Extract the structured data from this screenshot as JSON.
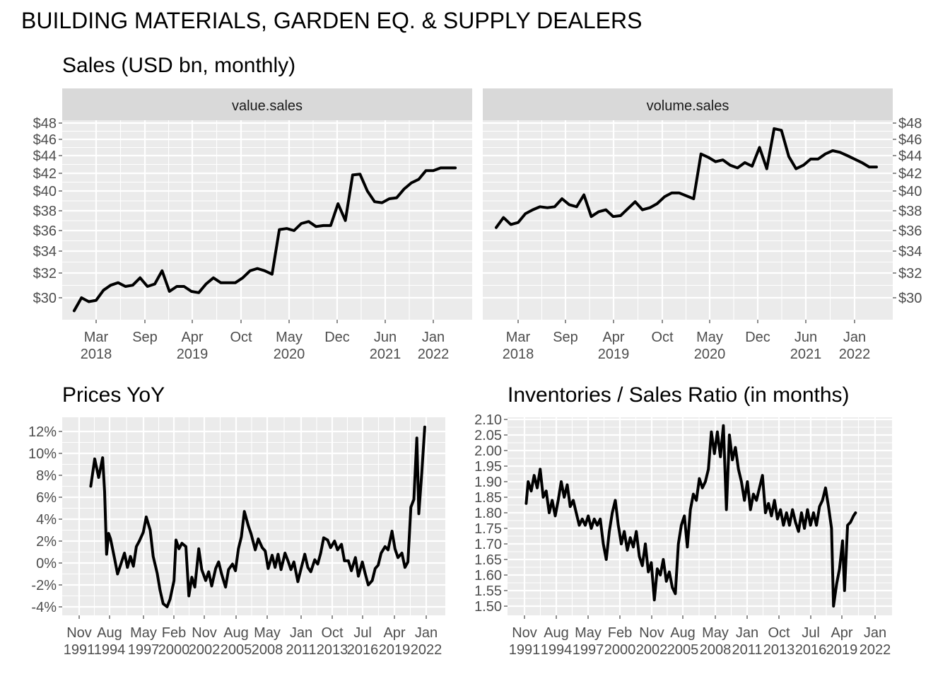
{
  "title": "BUILDING MATERIALS, GARDEN EQ. & SUPPLY DEALERS",
  "chart_data": [
    {
      "type": "line",
      "title": "Sales (USD bn, monthly)",
      "facet": "value.sales",
      "x_ticks": [
        [
          "Mar",
          "2018"
        ],
        [
          "Sep",
          ""
        ],
        [
          "Apr",
          "2019"
        ],
        [
          "Oct",
          ""
        ],
        [
          "May",
          "2020"
        ],
        [
          "Dec",
          ""
        ],
        [
          "Jun",
          "2021"
        ],
        [
          "Jan",
          "2022"
        ]
      ],
      "y_ticks": [
        "$30",
        "$32",
        "$34",
        "$36",
        "$38",
        "$40",
        "$42",
        "$44",
        "$46",
        "$48"
      ],
      "scale": "log",
      "ylim": [
        28.9,
        48
      ],
      "xlim": [
        "2017-11",
        "2022-06"
      ],
      "grid": true,
      "x": [
        "2017-12",
        "2018-01",
        "2018-02",
        "2018-03",
        "2018-04",
        "2018-05",
        "2018-06",
        "2018-07",
        "2018-08",
        "2018-09",
        "2018-10",
        "2018-11",
        "2018-12",
        "2019-01",
        "2019-02",
        "2019-03",
        "2019-04",
        "2019-05",
        "2019-06",
        "2019-07",
        "2019-08",
        "2019-09",
        "2019-10",
        "2019-11",
        "2019-12",
        "2020-01",
        "2020-02",
        "2020-03",
        "2020-04",
        "2020-05",
        "2020-06",
        "2020-07",
        "2020-08",
        "2020-09",
        "2020-10",
        "2020-11",
        "2020-12",
        "2021-01",
        "2021-02",
        "2021-03",
        "2021-04",
        "2021-05",
        "2021-06",
        "2021-07",
        "2021-08",
        "2021-09",
        "2021-10",
        "2021-11",
        "2021-12",
        "2022-01",
        "2022-02",
        "2022-03",
        "2022-04"
      ],
      "values": [
        29.0,
        30.0,
        29.7,
        29.8,
        30.6,
        31.0,
        31.2,
        30.9,
        31.0,
        31.6,
        30.9,
        31.1,
        32.2,
        30.5,
        30.9,
        30.9,
        30.5,
        30.4,
        31.1,
        31.6,
        31.2,
        31.2,
        31.2,
        31.6,
        32.2,
        32.4,
        32.2,
        31.9,
        36.1,
        36.2,
        36.0,
        36.7,
        36.9,
        36.4,
        36.5,
        36.5,
        38.7,
        37.0,
        41.8,
        41.9,
        40.0,
        38.9,
        38.8,
        39.2,
        39.3,
        40.2,
        40.9,
        41.3,
        42.3,
        42.3,
        42.6,
        42.6,
        42.6
      ]
    },
    {
      "type": "line",
      "title": "",
      "facet": "volume.sales",
      "x_ticks": [
        [
          "Mar",
          "2018"
        ],
        [
          "Sep",
          ""
        ],
        [
          "Apr",
          "2019"
        ],
        [
          "Oct",
          ""
        ],
        [
          "May",
          "2020"
        ],
        [
          "Dec",
          ""
        ],
        [
          "Jun",
          "2021"
        ],
        [
          "Jan",
          "2022"
        ]
      ],
      "y_ticks": [
        "$30",
        "$32",
        "$34",
        "$36",
        "$38",
        "$40",
        "$42",
        "$44",
        "$46",
        "$48"
      ],
      "scale": "log",
      "ylim": [
        28.9,
        48
      ],
      "xlim": [
        "2017-11",
        "2022-06"
      ],
      "grid": true,
      "x": [
        "2017-12",
        "2018-01",
        "2018-02",
        "2018-03",
        "2018-04",
        "2018-05",
        "2018-06",
        "2018-07",
        "2018-08",
        "2018-09",
        "2018-10",
        "2018-11",
        "2018-12",
        "2019-01",
        "2019-02",
        "2019-03",
        "2019-04",
        "2019-05",
        "2019-06",
        "2019-07",
        "2019-08",
        "2019-09",
        "2019-10",
        "2019-11",
        "2019-12",
        "2020-01",
        "2020-02",
        "2020-03",
        "2020-04",
        "2020-05",
        "2020-06",
        "2020-07",
        "2020-08",
        "2020-09",
        "2020-10",
        "2020-11",
        "2020-12",
        "2021-01",
        "2021-02",
        "2021-03",
        "2021-04",
        "2021-05",
        "2021-06",
        "2021-07",
        "2021-08",
        "2021-09",
        "2021-10",
        "2021-11",
        "2021-12",
        "2022-01",
        "2022-02",
        "2022-03",
        "2022-04"
      ],
      "values": [
        36.3,
        37.3,
        36.6,
        36.8,
        37.7,
        38.1,
        38.4,
        38.3,
        38.4,
        39.2,
        38.6,
        38.4,
        39.6,
        37.4,
        37.9,
        38.1,
        37.4,
        37.5,
        38.2,
        38.9,
        38.1,
        38.3,
        38.7,
        39.4,
        39.8,
        39.8,
        39.5,
        39.2,
        44.2,
        43.8,
        43.3,
        43.5,
        42.9,
        42.6,
        43.2,
        42.8,
        45.0,
        42.5,
        47.3,
        47.1,
        43.9,
        42.5,
        42.9,
        43.6,
        43.6,
        44.2,
        44.6,
        44.4,
        44.0,
        43.6,
        43.2,
        42.7,
        42.7
      ]
    },
    {
      "type": "line",
      "title": "Prices YoY",
      "x_ticks": [
        [
          "Nov",
          "1991"
        ],
        [
          "Aug",
          "1994"
        ],
        [
          "May",
          "1997"
        ],
        [
          "Feb",
          "2000"
        ],
        [
          "Nov",
          "2002"
        ],
        [
          "Aug",
          "2005"
        ],
        [
          "May",
          "2008"
        ],
        [
          "Jan",
          "2011"
        ],
        [
          "Oct",
          "2013"
        ],
        [
          "Jul",
          "2016"
        ],
        [
          "Apr",
          "2019"
        ],
        [
          "Jan",
          "2022"
        ]
      ],
      "y_ticks": [
        "-4%",
        "-2%",
        "0%",
        "2%",
        "4%",
        "6%",
        "8%",
        "10%",
        "12%"
      ],
      "ylim": [
        -4.6,
        13
      ],
      "xlim": [
        "1990-11",
        "2022-12"
      ],
      "grid": true,
      "x_start": "1992-12",
      "x_end": "2022-04",
      "values_by_time": [
        [
          1993.0,
          7.0
        ],
        [
          1993.4,
          9.5
        ],
        [
          1993.8,
          7.8
        ],
        [
          1994.2,
          9.6
        ],
        [
          1994.4,
          6.5
        ],
        [
          1994.6,
          0.8
        ],
        [
          1994.8,
          2.7
        ],
        [
          1995.0,
          2.2
        ],
        [
          1995.4,
          0.4
        ],
        [
          1995.7,
          -1.0
        ],
        [
          1996.0,
          -0.2
        ],
        [
          1996.4,
          0.9
        ],
        [
          1996.7,
          -0.4
        ],
        [
          1997.0,
          0.6
        ],
        [
          1997.3,
          -0.3
        ],
        [
          1997.6,
          1.5
        ],
        [
          1997.9,
          2.0
        ],
        [
          1998.3,
          2.8
        ],
        [
          1998.6,
          4.2
        ],
        [
          1999.0,
          3.0
        ],
        [
          1999.3,
          0.6
        ],
        [
          1999.7,
          -0.9
        ],
        [
          2000.0,
          -2.5
        ],
        [
          2000.3,
          -3.7
        ],
        [
          2000.7,
          -4.0
        ],
        [
          2001.0,
          -3.3
        ],
        [
          2001.4,
          -1.6
        ],
        [
          2001.6,
          2.1
        ],
        [
          2001.9,
          1.3
        ],
        [
          2002.2,
          1.8
        ],
        [
          2002.6,
          1.5
        ],
        [
          2002.9,
          -3.0
        ],
        [
          2003.2,
          -1.3
        ],
        [
          2003.5,
          -2.2
        ],
        [
          2003.9,
          1.3
        ],
        [
          2004.2,
          -0.6
        ],
        [
          2004.6,
          -1.6
        ],
        [
          2004.9,
          -0.8
        ],
        [
          2005.2,
          -2.1
        ],
        [
          2005.6,
          -0.5
        ],
        [
          2005.9,
          0.1
        ],
        [
          2006.2,
          -1.0
        ],
        [
          2006.6,
          -2.2
        ],
        [
          2006.9,
          -0.6
        ],
        [
          2007.3,
          -0.1
        ],
        [
          2007.6,
          -0.7
        ],
        [
          2007.9,
          1.3
        ],
        [
          2008.2,
          2.4
        ],
        [
          2008.5,
          4.7
        ],
        [
          2008.9,
          3.4
        ],
        [
          2009.2,
          2.6
        ],
        [
          2009.6,
          1.2
        ],
        [
          2009.9,
          2.2
        ],
        [
          2010.3,
          1.4
        ],
        [
          2010.6,
          1.1
        ],
        [
          2010.9,
          -0.5
        ],
        [
          2011.3,
          0.7
        ],
        [
          2011.6,
          -0.4
        ],
        [
          2011.9,
          0.8
        ],
        [
          2012.2,
          -0.6
        ],
        [
          2012.6,
          0.9
        ],
        [
          2012.9,
          0.2
        ],
        [
          2013.2,
          -0.6
        ],
        [
          2013.5,
          0.1
        ],
        [
          2013.9,
          -1.7
        ],
        [
          2014.2,
          -0.6
        ],
        [
          2014.6,
          0.8
        ],
        [
          2014.9,
          -0.4
        ],
        [
          2015.2,
          -0.8
        ],
        [
          2015.6,
          0.3
        ],
        [
          2015.9,
          -0.1
        ],
        [
          2016.2,
          0.9
        ],
        [
          2016.5,
          2.3
        ],
        [
          2016.9,
          2.1
        ],
        [
          2017.2,
          1.4
        ],
        [
          2017.6,
          2.0
        ],
        [
          2017.9,
          1.2
        ],
        [
          2018.3,
          1.7
        ],
        [
          2018.6,
          0.2
        ],
        [
          2019.0,
          0.2
        ],
        [
          2019.3,
          -0.7
        ],
        [
          2019.7,
          0.5
        ],
        [
          2020.0,
          -1.2
        ],
        [
          2020.4,
          0.1
        ],
        [
          2020.7,
          -1.0
        ],
        [
          2021.0,
          -2.0
        ],
        [
          2021.4,
          -1.6
        ],
        [
          2021.7,
          -0.5
        ],
        [
          2022.0,
          -0.2
        ],
        [
          2022.3,
          0.9
        ],
        [
          2022.7,
          1.5
        ],
        [
          2023.0,
          1.2
        ],
        [
          2023.4,
          2.9
        ],
        [
          2023.7,
          1.3
        ],
        [
          2024.0,
          0.5
        ],
        [
          2024.4,
          0.9
        ],
        [
          2024.7,
          -0.4
        ],
        [
          2025.0,
          0.1
        ],
        [
          2025.3,
          5.1
        ],
        [
          2025.6,
          5.8
        ],
        [
          2025.9,
          11.4
        ],
        [
          2026.1,
          4.5
        ],
        [
          2026.4,
          8.2
        ],
        [
          2026.7,
          12.4
        ]
      ]
    },
    {
      "type": "line",
      "title": "Inventories / Sales Ratio (in months)",
      "x_ticks": [
        [
          "Nov",
          "1991"
        ],
        [
          "Aug",
          "1994"
        ],
        [
          "May",
          "1997"
        ],
        [
          "Feb",
          "2000"
        ],
        [
          "Nov",
          "2002"
        ],
        [
          "Aug",
          "2005"
        ],
        [
          "May",
          "2008"
        ],
        [
          "Jan",
          "2011"
        ],
        [
          "Oct",
          "2013"
        ],
        [
          "Jul",
          "2016"
        ],
        [
          "Apr",
          "2019"
        ],
        [
          "Jan",
          "2022"
        ]
      ],
      "y_ticks": [
        "1.50",
        "1.55",
        "1.60",
        "1.65",
        "1.70",
        "1.75",
        "1.80",
        "1.85",
        "1.90",
        "1.95",
        "2.00",
        "2.05",
        "2.10"
      ],
      "ylim": [
        1.48,
        2.11
      ],
      "xlim": [
        "1990-11",
        "2022-12"
      ],
      "grid": true,
      "x_start": "1992-01",
      "x_end": "2022-04",
      "values_by_time": [
        [
          1992.0,
          1.83
        ],
        [
          1992.2,
          1.9
        ],
        [
          1992.5,
          1.87
        ],
        [
          1992.8,
          1.92
        ],
        [
          1993.1,
          1.88
        ],
        [
          1993.4,
          1.94
        ],
        [
          1993.7,
          1.85
        ],
        [
          1994.0,
          1.87
        ],
        [
          1994.3,
          1.8
        ],
        [
          1994.6,
          1.84
        ],
        [
          1994.9,
          1.79
        ],
        [
          1995.2,
          1.84
        ],
        [
          1995.5,
          1.9
        ],
        [
          1995.8,
          1.85
        ],
        [
          1996.1,
          1.89
        ],
        [
          1996.4,
          1.82
        ],
        [
          1996.7,
          1.84
        ],
        [
          1997.0,
          1.8
        ],
        [
          1997.3,
          1.76
        ],
        [
          1997.6,
          1.78
        ],
        [
          1997.9,
          1.76
        ],
        [
          1998.2,
          1.79
        ],
        [
          1998.5,
          1.75
        ],
        [
          1998.8,
          1.78
        ],
        [
          1999.1,
          1.76
        ],
        [
          1999.4,
          1.78
        ],
        [
          1999.7,
          1.7
        ],
        [
          2000.0,
          1.65
        ],
        [
          2000.3,
          1.74
        ],
        [
          2000.6,
          1.8
        ],
        [
          2000.9,
          1.84
        ],
        [
          2001.2,
          1.76
        ],
        [
          2001.5,
          1.7
        ],
        [
          2001.8,
          1.74
        ],
        [
          2002.1,
          1.68
        ],
        [
          2002.4,
          1.72
        ],
        [
          2002.7,
          1.69
        ],
        [
          2003.0,
          1.74
        ],
        [
          2003.3,
          1.66
        ],
        [
          2003.6,
          1.63
        ],
        [
          2003.9,
          1.7
        ],
        [
          2004.2,
          1.61
        ],
        [
          2004.5,
          1.64
        ],
        [
          2004.8,
          1.52
        ],
        [
          2005.1,
          1.62
        ],
        [
          2005.4,
          1.6
        ],
        [
          2005.7,
          1.65
        ],
        [
          2006.0,
          1.58
        ],
        [
          2006.3,
          1.61
        ],
        [
          2006.6,
          1.56
        ],
        [
          2006.9,
          1.54
        ],
        [
          2007.2,
          1.7
        ],
        [
          2007.5,
          1.76
        ],
        [
          2007.8,
          1.79
        ],
        [
          2008.1,
          1.69
        ],
        [
          2008.4,
          1.81
        ],
        [
          2008.7,
          1.86
        ],
        [
          2009.0,
          1.84
        ],
        [
          2009.3,
          1.91
        ],
        [
          2009.6,
          1.88
        ],
        [
          2009.9,
          1.9
        ],
        [
          2010.2,
          1.94
        ],
        [
          2010.5,
          2.06
        ],
        [
          2010.8,
          1.99
        ],
        [
          2011.1,
          2.06
        ],
        [
          2011.4,
          1.98
        ],
        [
          2011.7,
          2.08
        ],
        [
          2012.0,
          1.81
        ],
        [
          2012.3,
          2.05
        ],
        [
          2012.6,
          1.97
        ],
        [
          2012.9,
          2.01
        ],
        [
          2013.2,
          1.94
        ],
        [
          2013.5,
          1.9
        ],
        [
          2013.8,
          1.84
        ],
        [
          2014.1,
          1.9
        ],
        [
          2014.4,
          1.81
        ],
        [
          2014.7,
          1.86
        ],
        [
          2015.0,
          1.84
        ],
        [
          2015.3,
          1.88
        ],
        [
          2015.6,
          1.92
        ],
        [
          2015.9,
          1.8
        ],
        [
          2016.2,
          1.83
        ],
        [
          2016.5,
          1.79
        ],
        [
          2016.8,
          1.84
        ],
        [
          2017.1,
          1.78
        ],
        [
          2017.4,
          1.81
        ],
        [
          2017.7,
          1.76
        ],
        [
          2018.0,
          1.8
        ],
        [
          2018.3,
          1.76
        ],
        [
          2018.6,
          1.81
        ],
        [
          2018.9,
          1.77
        ],
        [
          2019.2,
          1.74
        ],
        [
          2019.5,
          1.8
        ],
        [
          2019.8,
          1.75
        ],
        [
          2020.1,
          1.81
        ],
        [
          2020.4,
          1.76
        ],
        [
          2020.7,
          1.8
        ],
        [
          2021.0,
          1.76
        ],
        [
          2021.3,
          1.82
        ],
        [
          2021.6,
          1.84
        ],
        [
          2021.9,
          1.88
        ],
        [
          2022.2,
          1.82
        ],
        [
          2022.5,
          1.75
        ],
        [
          2022.7,
          1.5
        ],
        [
          2023.0,
          1.57
        ],
        [
          2023.3,
          1.62
        ],
        [
          2023.6,
          1.71
        ],
        [
          2023.8,
          1.55
        ],
        [
          2024.1,
          1.76
        ],
        [
          2024.4,
          1.77
        ],
        [
          2024.7,
          1.79
        ],
        [
          2024.9,
          1.8
        ]
      ]
    }
  ]
}
